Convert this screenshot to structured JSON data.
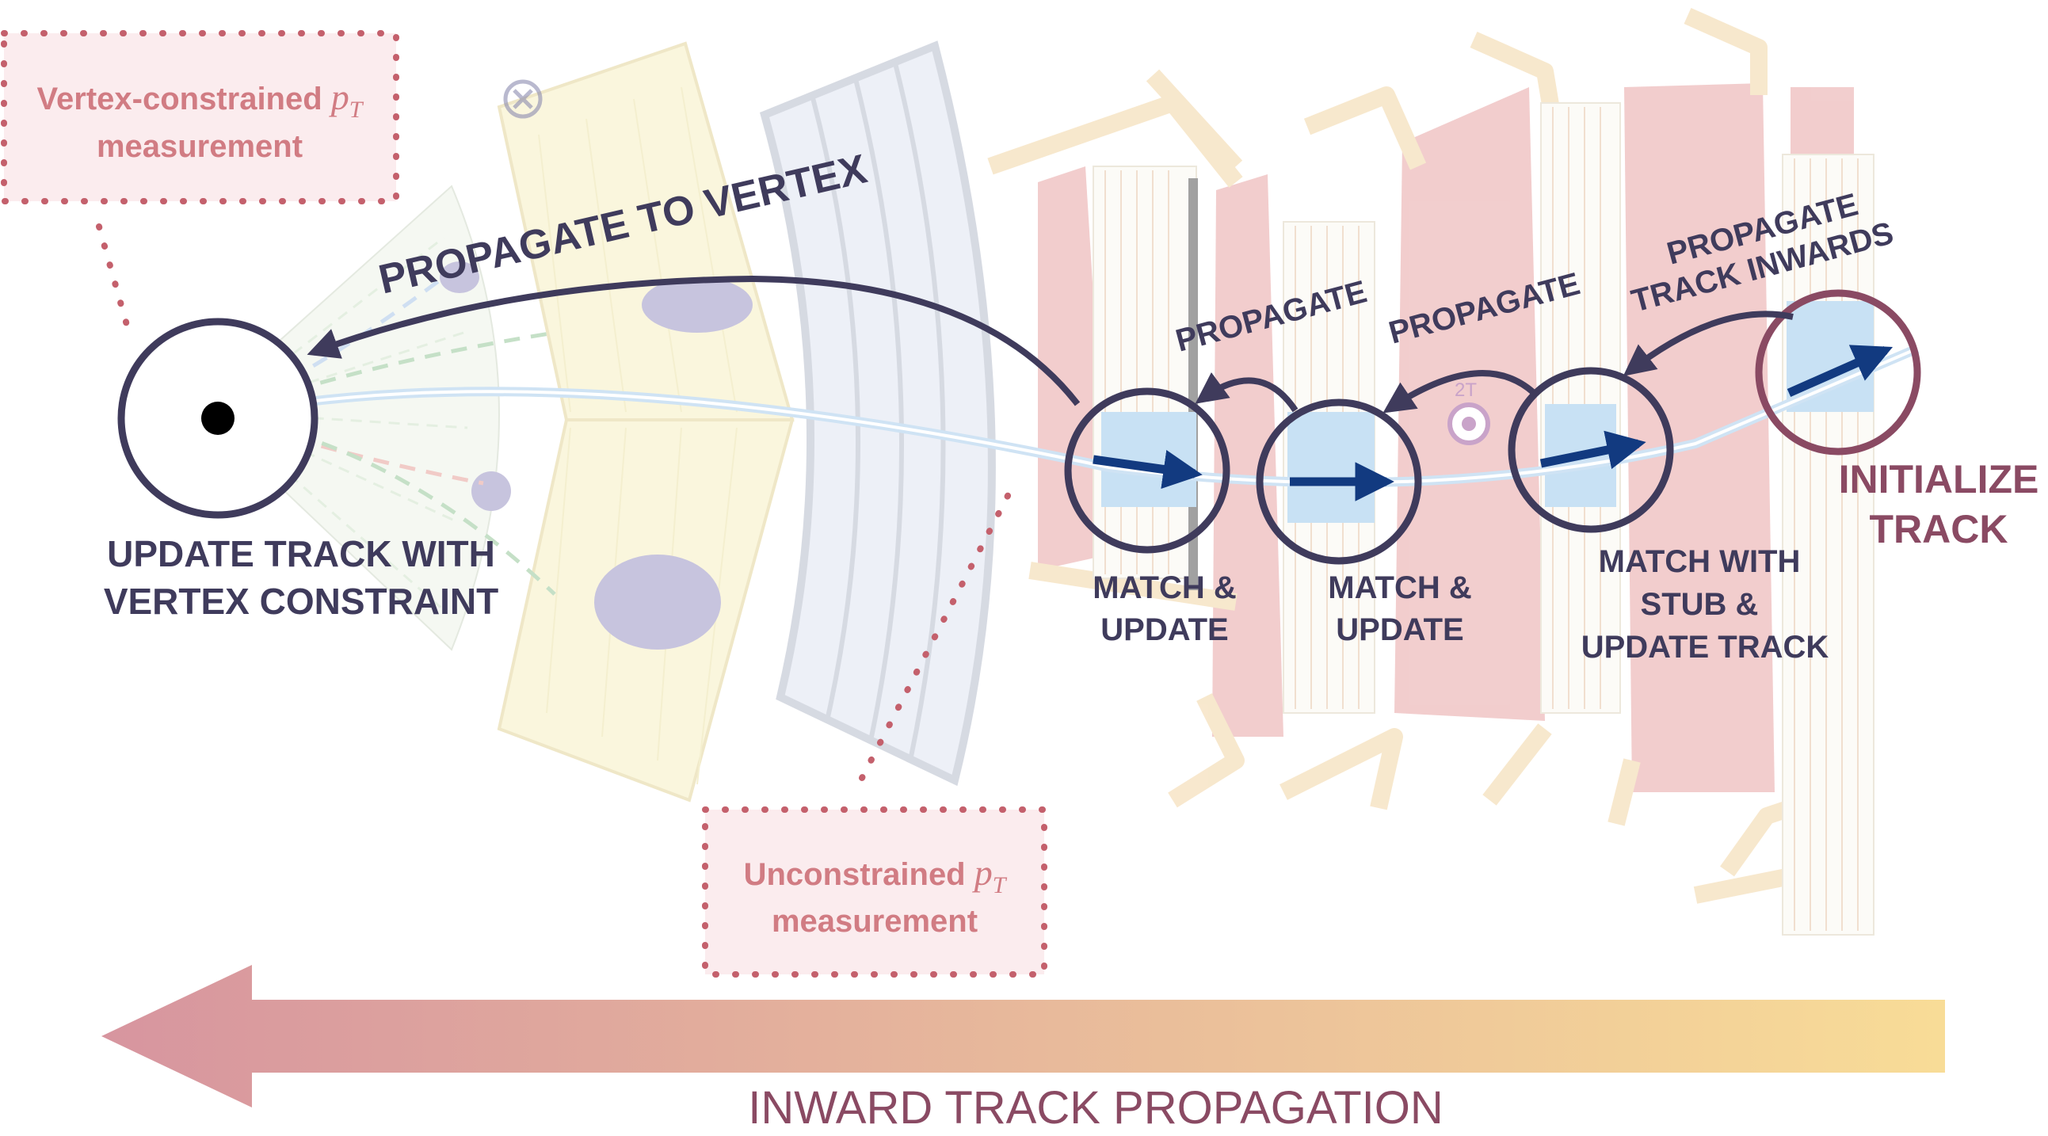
{
  "colors": {
    "dark": "#3f3b5c",
    "navy": "#123a80",
    "mauve": "#8a4a63",
    "rose": "#b6606a",
    "arrow_left": "#d7959f",
    "arrow_right": "#f8dc97",
    "calo_yellow": "#f6f0c2",
    "muon_pink": "#e8a6a6",
    "magnet_blue": "#dfe4f2",
    "support_beige": "#f2d6a6"
  },
  "labels": {
    "vertex_box_line1_prefix": "Vertex-constrained ",
    "vertex_box_line1_var": "p",
    "vertex_box_line1_sub": "T",
    "vertex_box_line2": "measurement",
    "uncon_box_line1_prefix": "Unconstrained ",
    "uncon_box_line1_var": "p",
    "uncon_box_line1_sub": "T",
    "uncon_box_line2": "measurement",
    "propagate_to_vertex": "PROPAGATE TO VERTEX",
    "propagate_a": "PROPAGATE",
    "propagate_b": "PROPAGATE",
    "propagate_inwards_line1": "PROPAGATE",
    "propagate_inwards_line2": "TRACK INWARDS",
    "update_vertex_line1": "UPDATE TRACK WITH",
    "update_vertex_line2": "VERTEX CONSTRAINT",
    "match_update_1_line1": "MATCH &",
    "match_update_1_line2": "UPDATE",
    "match_update_2_line1": "MATCH &",
    "match_update_2_line2": "UPDATE",
    "match_stub_line1": "MATCH WITH",
    "match_stub_line2": "STUB &",
    "match_stub_line3": "UPDATE TRACK",
    "initialize_line1": "INITIALIZE",
    "initialize_line2": "TRACK",
    "field_label": "2T",
    "bottom_label": "INWARD TRACK PROPAGATION"
  }
}
